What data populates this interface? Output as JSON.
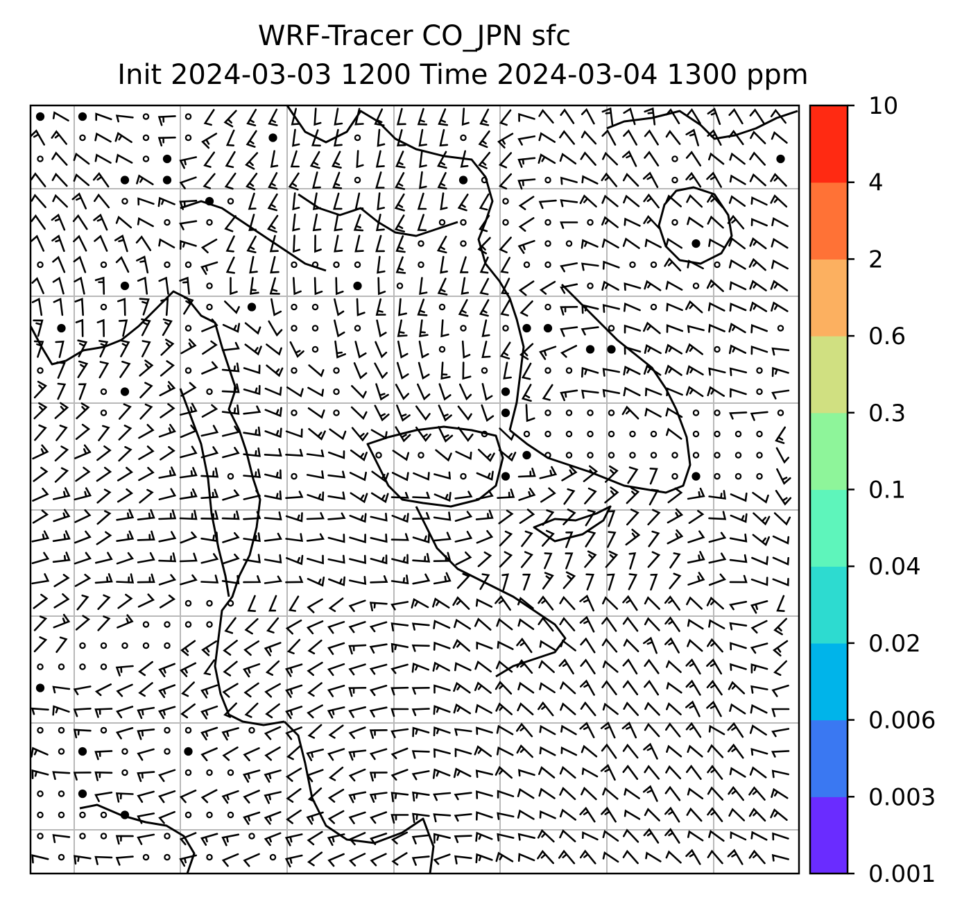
{
  "title": {
    "line1": "WRF-Tracer CO_JPN sfc",
    "line2": "Init 2024-03-03 1200 Time 2024-03-04 1300 ppm"
  },
  "colorbar": {
    "levels": [
      "0.001",
      "0.003",
      "0.006",
      "0.02",
      "0.04",
      "0.1",
      "0.3",
      "0.6",
      "2",
      "4",
      "10"
    ],
    "colors": [
      "#6a2cff",
      "#3a78f2",
      "#00b4ea",
      "#2ddbd0",
      "#5ef5bb",
      "#8ef59a",
      "#d0e081",
      "#fcb060",
      "#ff7236",
      "#ff2a12"
    ]
  },
  "map": {
    "gridlines": true,
    "vectors": "wind barbs (black)",
    "coastline_color": "#000000",
    "grid_color": "#b8b8b8"
  }
}
